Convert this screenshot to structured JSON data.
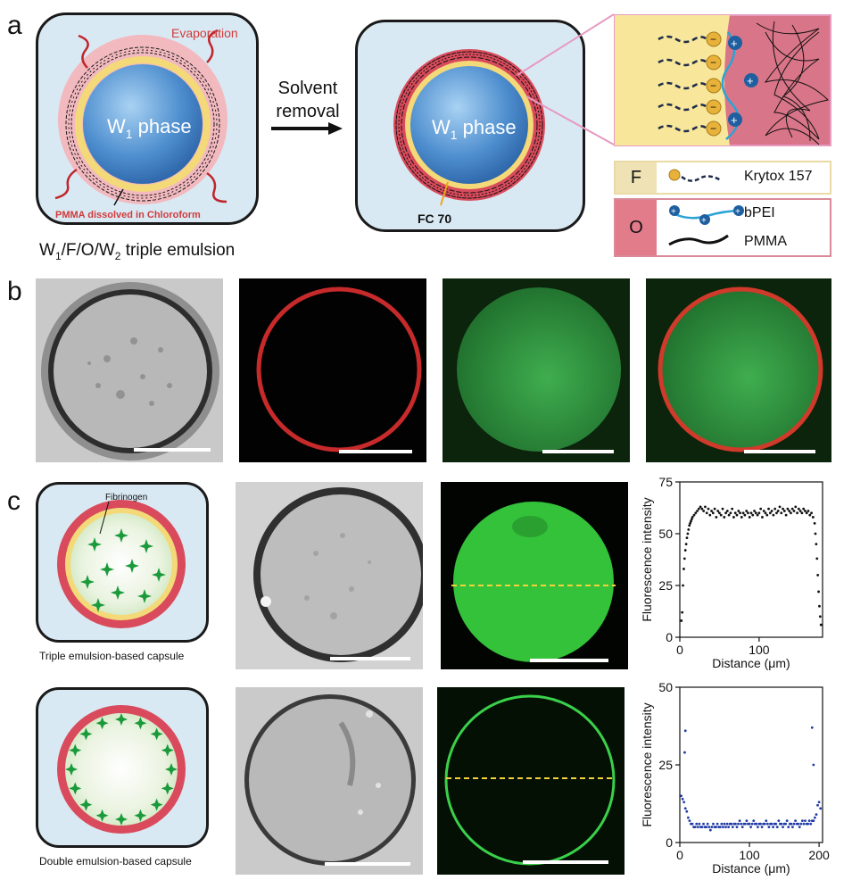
{
  "panels": {
    "a": "a",
    "b": "b",
    "c": "c"
  },
  "schematic_a": {
    "evaporation": "Evaporation",
    "core_left": "W",
    "core_sub": "1",
    "core_suffix": " phase",
    "pmma_note": "PMMA dissolved in Chloroform",
    "emulsion_prefix": "W",
    "emulsion_s1": "1",
    "emulsion_mid": "/F/O/W",
    "emulsion_s2": "2",
    "emulsion_suffix": " triple emulsion",
    "solvent_line1": "Solvent",
    "solvent_line2": "removal",
    "fc70": "FC 70"
  },
  "legend": {
    "f_label": "F",
    "krytox": "Krytox 157",
    "o_label": "O",
    "bpei": "bPEI",
    "pmma": "PMMA"
  },
  "schematic_c": {
    "fibrinogen": "Fibrinogen",
    "triple_caption": "Triple emulsion-based capsule",
    "double_caption": "Double emulsion-based capsule"
  },
  "colors": {
    "red_shell": "#d94b5c",
    "yellow_layer": "#f3e08a",
    "blue_core": "#4f8fcf",
    "green_dot": "#1a9a3a",
    "navy_dot": "#1f3aa6"
  },
  "chart_data": [
    {
      "type": "scatter",
      "xlabel": "Distance (μm)",
      "ylabel": "Fluorescence intensity",
      "xlim": [
        0,
        180
      ],
      "ylim": [
        0,
        75
      ],
      "xticks": [
        0,
        100
      ],
      "yticks": [
        0,
        25,
        50,
        75
      ],
      "x": [
        2,
        3,
        4,
        5,
        6,
        7,
        8,
        9,
        10,
        11,
        12,
        13,
        14,
        15,
        16,
        18,
        20,
        22,
        24,
        26,
        28,
        30,
        32,
        34,
        36,
        38,
        40,
        42,
        44,
        46,
        48,
        50,
        52,
        54,
        56,
        58,
        60,
        62,
        64,
        66,
        68,
        70,
        72,
        74,
        76,
        78,
        80,
        82,
        84,
        86,
        88,
        90,
        92,
        94,
        96,
        98,
        100,
        102,
        104,
        106,
        108,
        110,
        112,
        114,
        116,
        118,
        120,
        122,
        124,
        126,
        128,
        130,
        132,
        134,
        136,
        138,
        140,
        142,
        144,
        146,
        148,
        150,
        152,
        154,
        156,
        158,
        160,
        162,
        164,
        166,
        168,
        170,
        171,
        172,
        173,
        174,
        175,
        176,
        177,
        178
      ],
      "y": [
        8,
        12,
        25,
        33,
        38,
        42,
        45,
        48,
        50,
        52,
        54,
        55,
        56,
        57,
        58,
        59,
        60,
        61,
        62,
        63,
        62,
        61,
        63,
        60,
        62,
        59,
        61,
        60,
        62,
        58,
        61,
        60,
        59,
        62,
        58,
        60,
        61,
        59,
        60,
        62,
        58,
        60,
        59,
        61,
        60,
        58,
        60,
        59,
        61,
        60,
        58,
        60,
        59,
        61,
        60,
        59,
        60,
        62,
        58,
        61,
        60,
        59,
        62,
        60,
        61,
        59,
        62,
        60,
        61,
        63,
        60,
        62,
        61,
        59,
        62,
        61,
        60,
        62,
        61,
        63,
        60,
        62,
        61,
        60,
        62,
        61,
        60,
        61,
        59,
        60,
        58,
        55,
        50,
        45,
        38,
        30,
        22,
        15,
        10,
        6
      ]
    },
    {
      "type": "scatter",
      "xlabel": "Distance (μm)",
      "ylabel": "Fluorescence intensity",
      "xlim": [
        0,
        205
      ],
      "ylim": [
        0,
        50
      ],
      "xticks": [
        0,
        100,
        200
      ],
      "yticks": [
        0,
        25,
        50
      ],
      "x": [
        2,
        4,
        6,
        8,
        10,
        12,
        14,
        16,
        18,
        20,
        22,
        24,
        26,
        28,
        30,
        32,
        34,
        36,
        38,
        40,
        42,
        44,
        46,
        48,
        50,
        52,
        54,
        56,
        58,
        60,
        62,
        64,
        66,
        68,
        70,
        72,
        74,
        76,
        78,
        80,
        82,
        84,
        86,
        88,
        90,
        92,
        94,
        96,
        98,
        100,
        102,
        104,
        106,
        108,
        110,
        112,
        114,
        116,
        118,
        120,
        122,
        124,
        126,
        128,
        130,
        132,
        134,
        136,
        138,
        140,
        142,
        144,
        146,
        148,
        150,
        152,
        154,
        156,
        158,
        160,
        162,
        164,
        166,
        168,
        170,
        172,
        174,
        176,
        178,
        180,
        182,
        184,
        186,
        188,
        190,
        192,
        194,
        196,
        198,
        200,
        202,
        8,
        7,
        190,
        192
      ],
      "y": [
        15,
        14,
        13,
        11,
        10,
        8,
        7,
        6,
        6,
        5,
        5,
        6,
        5,
        6,
        5,
        5,
        6,
        5,
        5,
        6,
        5,
        4,
        5,
        6,
        5,
        5,
        6,
        5,
        5,
        6,
        5,
        6,
        5,
        6,
        5,
        6,
        6,
        5,
        6,
        6,
        5,
        6,
        7,
        6,
        5,
        6,
        6,
        7,
        6,
        6,
        5,
        6,
        7,
        6,
        6,
        5,
        6,
        6,
        5,
        6,
        6,
        7,
        6,
        5,
        6,
        6,
        5,
        6,
        6,
        5,
        7,
        6,
        6,
        5,
        6,
        6,
        7,
        5,
        6,
        6,
        5,
        6,
        7,
        6,
        6,
        5,
        6,
        7,
        6,
        7,
        6,
        6,
        7,
        6,
        7,
        7,
        8,
        9,
        12,
        13,
        11,
        36,
        29,
        37,
        25
      ]
    }
  ]
}
